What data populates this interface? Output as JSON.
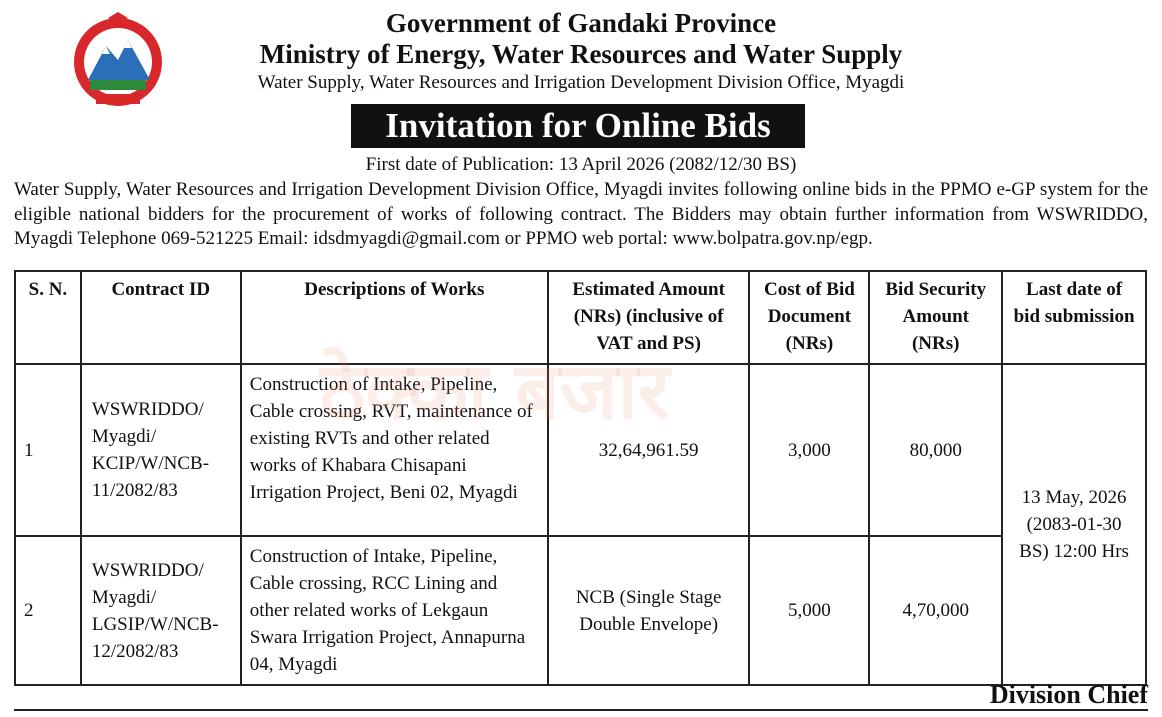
{
  "header": {
    "line1": "Government of Gandaki Province",
    "line2": "Ministry of Energy, Water Resources and Water Supply",
    "line3": "Water Supply, Water Resources and Irrigation Development Division Office, Myagdi"
  },
  "title": "Invitation for Online Bids",
  "publication": "First date of Publication: 13 April 2026 (2082/12/30 BS)",
  "intro": "Water Supply, Water Resources and Irrigation Development Division Office, Myagdi invites following online bids in the PPMO e-GP system for the eligible national bidders for the procurement of works of following contract. The Bidders may obtain further information from WSWRIDDO, Myagdi Telephone 069-521225 Email: idsdmyagdi@gmail.com or PPMO web portal: www.bolpatra.gov.np/egp.",
  "watermark": "ठेक्का बजार",
  "table": {
    "headers": [
      "S. N.",
      "Contract ID",
      "Descriptions of Works",
      "Estimated Amount (NRs) (inclusive of VAT and PS)",
      "Cost of Bid Document (NRs)",
      "Bid Security Amount (NRs)",
      "Last date of bid submission"
    ],
    "rows": [
      [
        "1",
        "WSWRIDDO/ Myagdi/ KCIP/W/NCB-11/2082/83",
        "Construction of Intake, Pipeline, Cable crossing, RVT, maintenance of existing RVTs and other related works of Khabara Chisapani Irrigation Project, Beni 02, Myagdi",
        "32,64,961.59",
        "3,000",
        "80,000"
      ],
      [
        "2",
        "WSWRIDDO/ Myagdi/ LGSIP/W/NCB-12/2082/83",
        "Construction of Intake, Pipeline, Cable crossing, RCC Lining and other related works of Lekgaun Swara Irrigation Project, Annapurna 04, Myagdi",
        "NCB (Single Stage Double Envelope)",
        "5,000",
        "4,70,000"
      ]
    ],
    "last_date": "13 May, 2026 (2083-01-30 BS) 12:00 Hrs"
  },
  "signature": "Division Chief"
}
